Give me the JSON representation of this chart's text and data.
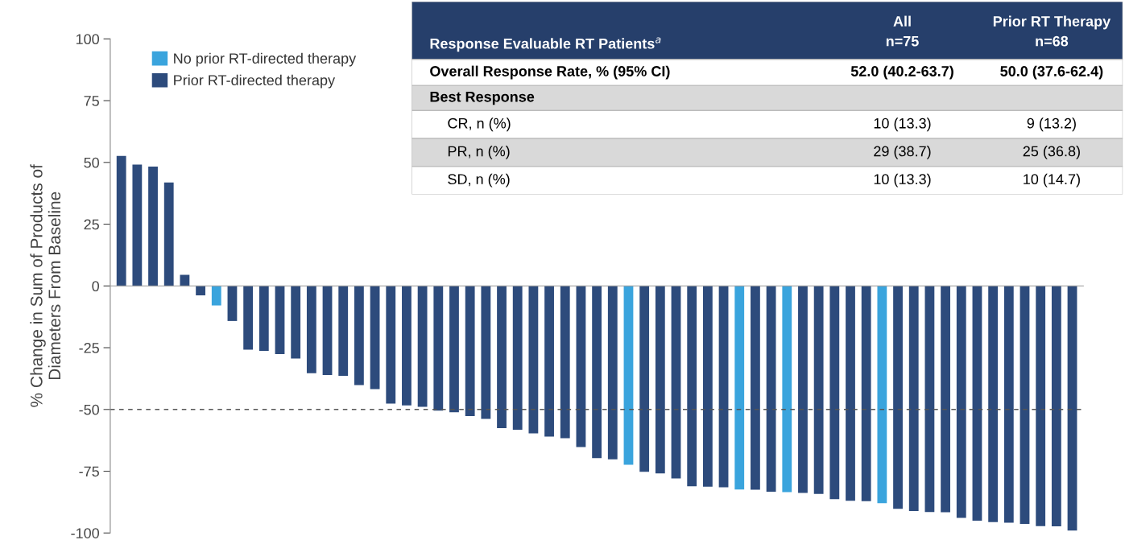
{
  "chart_data": [
    {
      "type": "bar",
      "ylabel": "% Change in Sum of Products of\nDiameters From Baseline",
      "categories": [
        null,
        null,
        null,
        null,
        null,
        null,
        null,
        null,
        null,
        null,
        null,
        null,
        null,
        null,
        null,
        null,
        null,
        null,
        null,
        null,
        null,
        null,
        null,
        null,
        null,
        null,
        null,
        null,
        null,
        null,
        null,
        null,
        null,
        null,
        null,
        null,
        null,
        null,
        null,
        null,
        null,
        null,
        null,
        null,
        null,
        null,
        null,
        null,
        null,
        null,
        null,
        null,
        null,
        null,
        null,
        null,
        null,
        null,
        null,
        null,
        null
      ],
      "series": [
        {
          "name": "No prior RT-directed therapy",
          "color": "#3aa4dd",
          "values": [
            null,
            null,
            null,
            null,
            null,
            null,
            -7.9,
            null,
            null,
            null,
            null,
            null,
            null,
            null,
            null,
            null,
            null,
            null,
            null,
            null,
            null,
            null,
            null,
            null,
            null,
            null,
            null,
            null,
            null,
            null,
            null,
            null,
            -72.4,
            null,
            null,
            null,
            null,
            null,
            null,
            -82.4,
            null,
            null,
            -83.5,
            null,
            null,
            null,
            null,
            null,
            -87.9,
            null,
            null,
            null,
            null,
            null,
            null,
            null,
            null,
            null,
            null,
            null,
            null
          ]
        },
        {
          "name": "Prior RT-directed therapy",
          "color": "#2d4b7c",
          "values": [
            52.6,
            49.1,
            48.3,
            41.9,
            4.5,
            -3.8,
            null,
            -14.2,
            -25.8,
            -26.3,
            -27.6,
            -29.4,
            -35.3,
            -36.1,
            -36.4,
            -40.1,
            -41.8,
            -47.6,
            -48.4,
            -48.9,
            -50.5,
            -51.1,
            -52.7,
            -53.8,
            -57.6,
            -58.2,
            -59.7,
            -61.0,
            -61.6,
            -65.2,
            -69.7,
            -70.2,
            null,
            -75.2,
            -75.9,
            -77.9,
            -81.1,
            -81.3,
            -81.5,
            null,
            -82.5,
            -83.3,
            null,
            -83.8,
            -84.2,
            -86.3,
            -87.0,
            -87.1,
            null,
            -90.2,
            -91.1,
            -91.5,
            -91.6,
            -93.9,
            -95.0,
            -95.6,
            -95.8,
            -96.3,
            -97.2,
            -97.3,
            -99.0
          ]
        }
      ],
      "ylim": [
        -100,
        100
      ],
      "yticks": [
        -100,
        -75,
        -50,
        -25,
        0,
        25,
        50,
        75,
        100
      ],
      "ref_lines": [
        {
          "axis": "y",
          "value": -50,
          "color": "#555555",
          "line_style": "dashed"
        }
      ],
      "legend": "top left",
      "grid": false
    },
    {
      "type": "other",
      "annotations": [
        "Response Evaluable RT Patients$^{a}$",
        "All\nn=75",
        "Prior RT Therapy\nn=68",
        "Overall Response Rate, % (95% CI)",
        "52.0 (40.2-63.7)",
        "50.0 (37.6-62.4)",
        "Best Response",
        "CR, n (%)",
        "10 (13.3)",
        "9 (13.2)",
        "PR, n (%)",
        "29 (38.7)",
        "25 (36.8)",
        "SD, n (%)",
        "10 (13.3)",
        "10 (14.7)"
      ]
    }
  ]
}
